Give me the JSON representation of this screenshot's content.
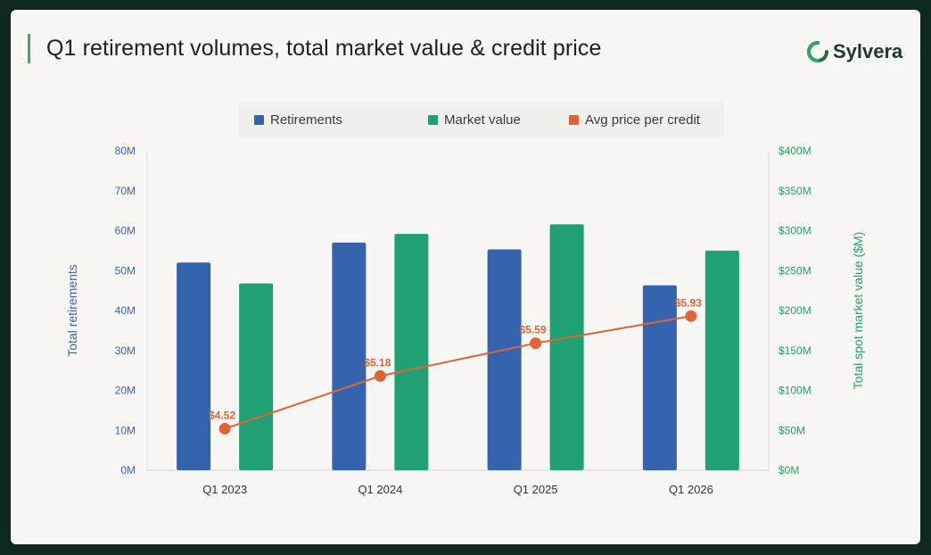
{
  "header": {
    "title": "Q1 retirement volumes, total market value & credit price",
    "brand": "Sylvera",
    "brand_icon": "sylvera-logo-icon"
  },
  "colors": {
    "retirements": "#3563ad",
    "market_value": "#20a173",
    "price": "#e0643a",
    "left_axis": "#3b62b0",
    "right_axis": "#2a9e6a"
  },
  "chart_data": {
    "type": "bar",
    "categories": [
      "Q1 2023",
      "Q1 2024",
      "Q1 2025",
      "Q1 2026"
    ],
    "series": [
      {
        "name": "Retirements",
        "axis": "left",
        "type": "bar",
        "values": [
          52,
          57,
          55.3,
          46.3
        ]
      },
      {
        "name": "Market value",
        "axis": "right",
        "type": "bar",
        "values": [
          234,
          296,
          308,
          275
        ]
      },
      {
        "name": "Avg price per credit",
        "axis": "right",
        "type": "line",
        "values": [
          4.52,
          5.18,
          5.59,
          5.93
        ],
        "labels": [
          "$4.52",
          "$5.18",
          "$5.59",
          "$5.93"
        ]
      }
    ],
    "ylabel": "Total retirements",
    "ylabel_right": "Total spot market value ($M)",
    "ylim": [
      0,
      80
    ],
    "ylim_right": [
      0,
      400
    ],
    "yticks": [
      "0M",
      "10M",
      "20M",
      "30M",
      "40M",
      "50M",
      "60M",
      "70M",
      "80M"
    ],
    "yticks_right": [
      "$0M",
      "$50M",
      "$100M",
      "$150M",
      "$200M",
      "$250M",
      "$300M",
      "$350M",
      "$400M"
    ],
    "price_scale": {
      "min": 4.0,
      "max": 8.0
    },
    "grid": false,
    "legend": "top"
  }
}
